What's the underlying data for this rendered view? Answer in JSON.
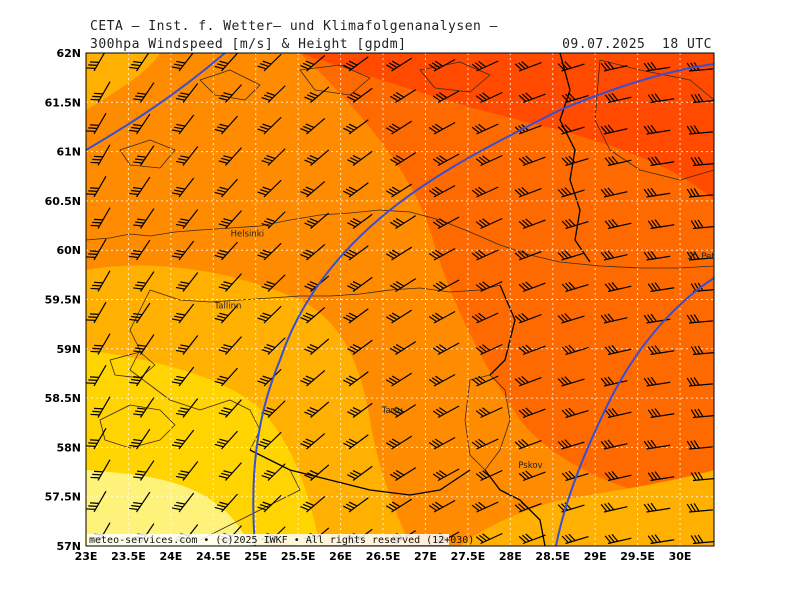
{
  "header": {
    "title": "CETA – Inst. f. Wetter– und Klimafolgenanalysen –",
    "product": "300hpa Windspeed [m/s] & Height [gpdm]",
    "datetime": "09.07.2025  18 UTC"
  },
  "map": {
    "lon_range": [
      23,
      30.4
    ],
    "lat_range": [
      57,
      62
    ],
    "lon_ticks": [
      {
        "value": 23,
        "label": "23E"
      },
      {
        "value": 23.5,
        "label": "23.5E"
      },
      {
        "value": 24,
        "label": "24E"
      },
      {
        "value": 24.5,
        "label": "24.5E"
      },
      {
        "value": 25,
        "label": "25E"
      },
      {
        "value": 25.5,
        "label": "25.5E"
      },
      {
        "value": 26,
        "label": "26E"
      },
      {
        "value": 26.5,
        "label": "26.5E"
      },
      {
        "value": 27,
        "label": "27E"
      },
      {
        "value": 27.5,
        "label": "27.5E"
      },
      {
        "value": 28,
        "label": "28E"
      },
      {
        "value": 28.5,
        "label": "28.5E"
      },
      {
        "value": 29,
        "label": "29E"
      },
      {
        "value": 29.5,
        "label": "29.5E"
      },
      {
        "value": 30,
        "label": "30E"
      }
    ],
    "lat_ticks": [
      {
        "value": 57,
        "label": "57N"
      },
      {
        "value": 57.5,
        "label": "57.5N"
      },
      {
        "value": 58,
        "label": "58N"
      },
      {
        "value": 58.5,
        "label": "58.5N"
      },
      {
        "value": 59,
        "label": "59N"
      },
      {
        "value": 59.5,
        "label": "59.5N"
      },
      {
        "value": 60,
        "label": "60N"
      },
      {
        "value": 60.5,
        "label": "60.5N"
      },
      {
        "value": 61,
        "label": "61N"
      },
      {
        "value": 61.5,
        "label": "61.5N"
      },
      {
        "value": 62,
        "label": "62N"
      }
    ],
    "cities": [
      {
        "name": "Helsinki",
        "lon": 24.94,
        "lat": 60.17
      },
      {
        "name": "Tallinn",
        "lon": 24.75,
        "lat": 59.44
      },
      {
        "name": "Tartu",
        "lon": 26.72,
        "lat": 58.38
      },
      {
        "name": "Pskov",
        "lon": 28.33,
        "lat": 57.82
      },
      {
        "name": "St. Petersbg.",
        "lon": 30.32,
        "lat": 59.94
      }
    ],
    "fill_colors": [
      "#fff27a",
      "#ffd400",
      "#ffb000",
      "#ff8c00",
      "#ff6a00",
      "#ff4a00"
    ],
    "contour_color": "#3a4fd0",
    "footer": "meteo-services.com • (c)2025 IWKF • All rights reserved (12+030)"
  }
}
